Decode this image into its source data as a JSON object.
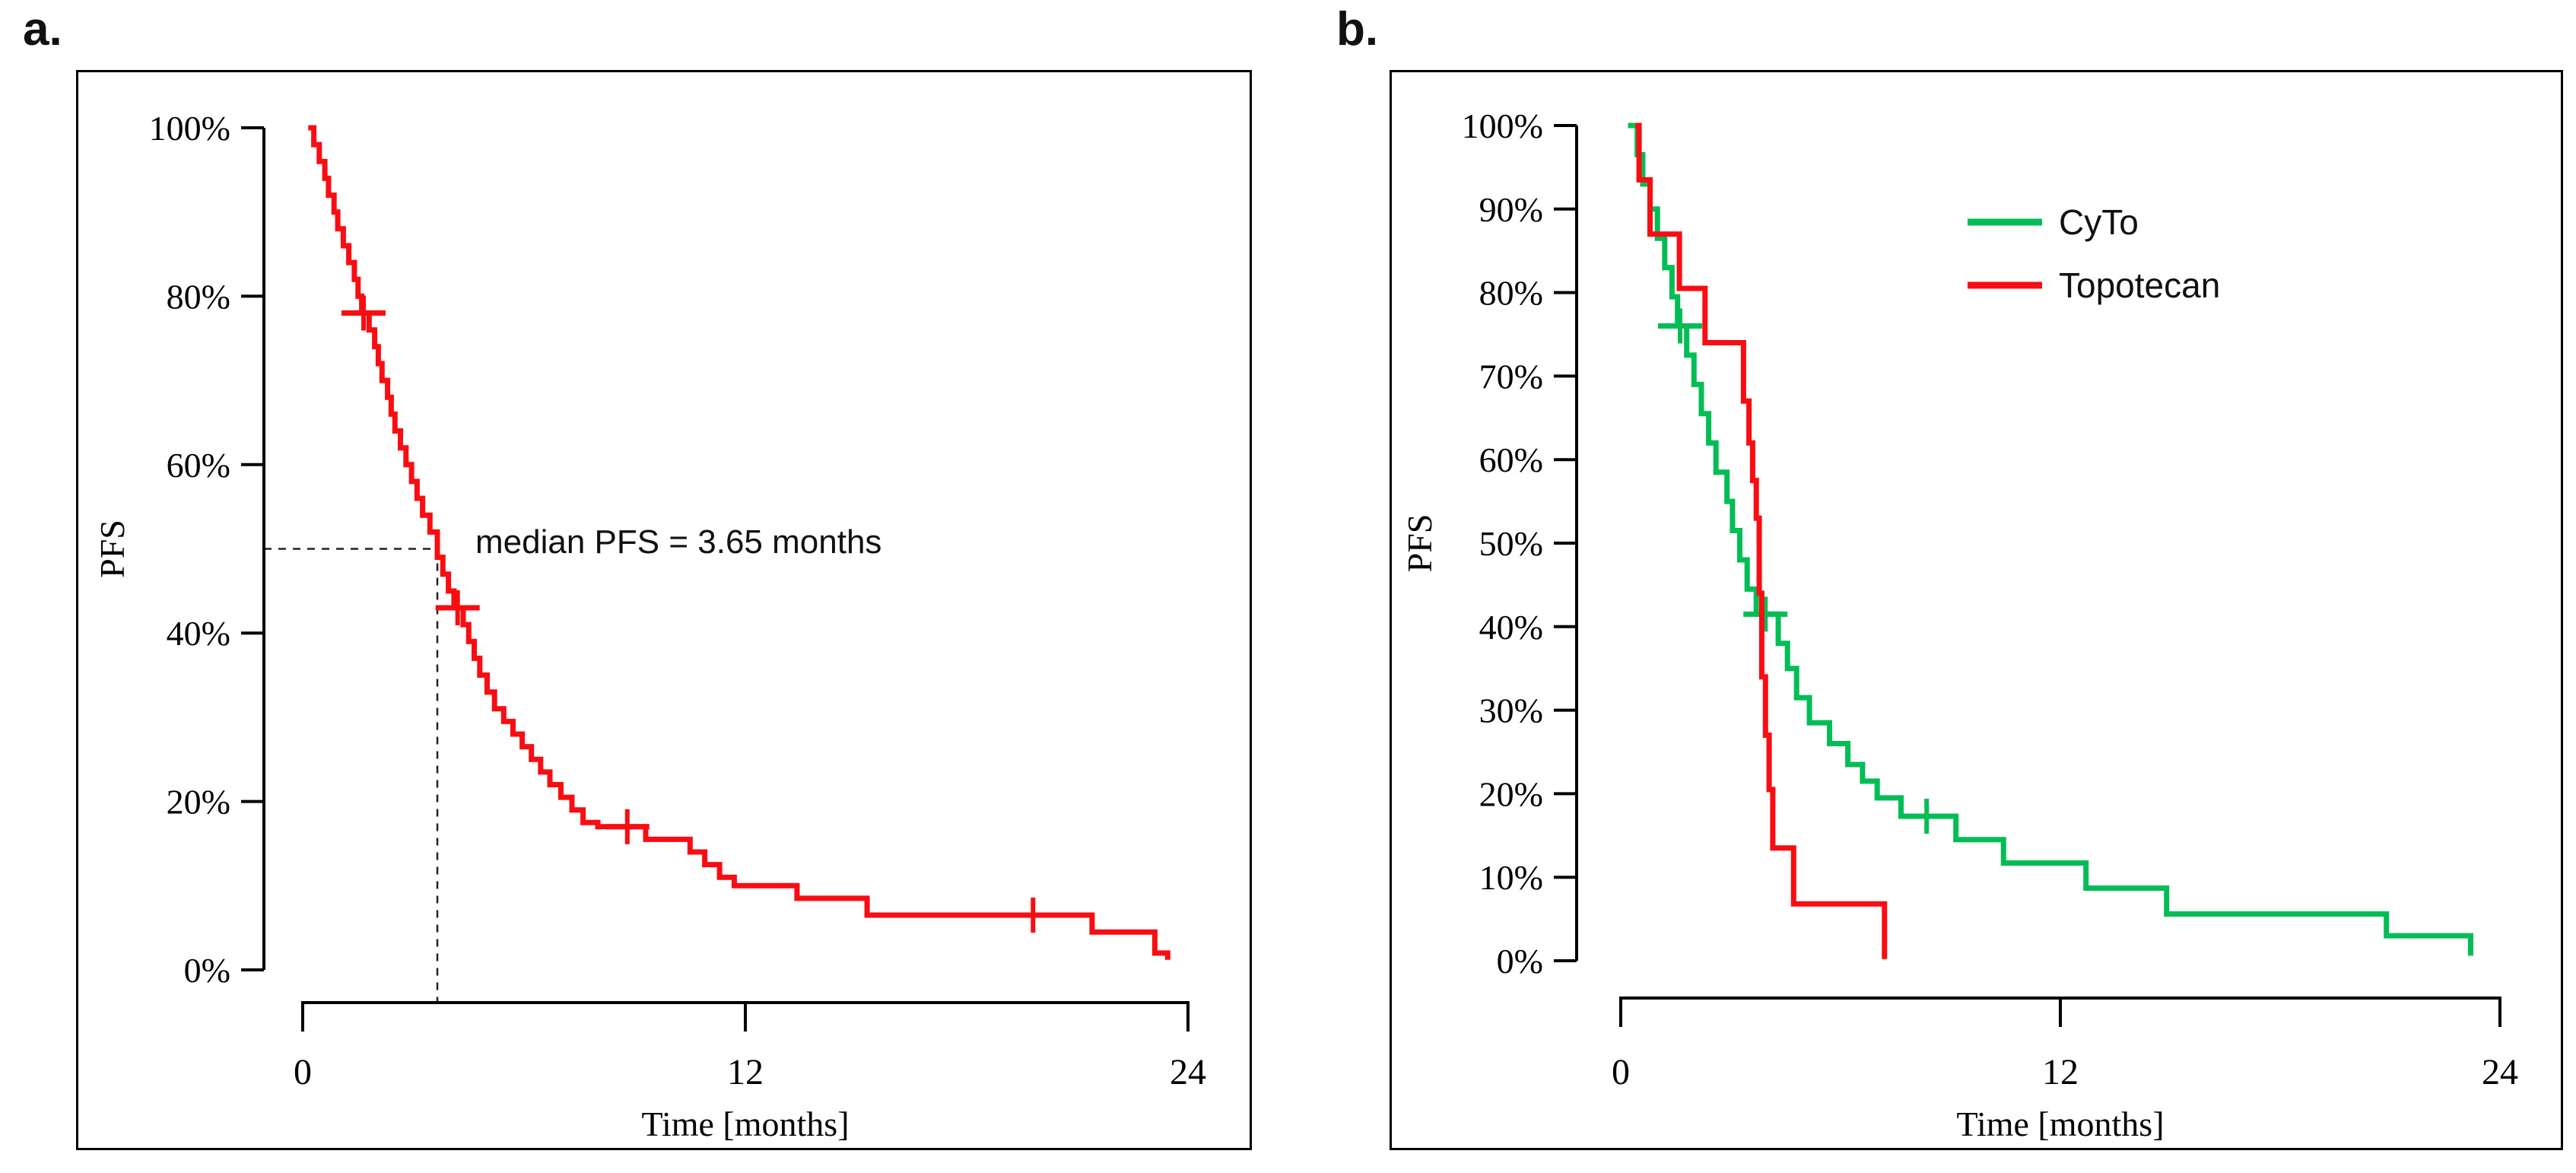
{
  "figure": {
    "background": "#ffffff",
    "axis_color": "#000000",
    "dash_color": "#222222"
  },
  "chart_data": [
    {
      "id": "a",
      "label": "a.",
      "type": "line",
      "subtype": "kaplan-meier-step",
      "title": "",
      "xlabel": "Time [months]",
      "ylabel": "PFS",
      "xlim": [
        0,
        24
      ],
      "ylim": [
        0,
        100
      ],
      "x_ticks": {
        "values": [
          0,
          12,
          24
        ],
        "labels": [
          "0",
          "12",
          "24"
        ]
      },
      "y_ticks": {
        "values": [
          100,
          80,
          60,
          40,
          20,
          0
        ],
        "labels": [
          "100%",
          "80%",
          "60%",
          "40%",
          "20%",
          "0%"
        ]
      },
      "grid": false,
      "annotation": {
        "text": "median PFS = 3.65 months",
        "median_months": 3.65,
        "median_percent": 50
      },
      "series": [
        {
          "name": "PFS",
          "color": "#f90d12",
          "start": 0.15,
          "end": 23.45,
          "steps": [
            [
              0.3,
              98
            ],
            [
              0.45,
              96
            ],
            [
              0.6,
              94
            ],
            [
              0.7,
              92
            ],
            [
              0.85,
              90
            ],
            [
              0.95,
              88
            ],
            [
              1.1,
              86
            ],
            [
              1.25,
              84
            ],
            [
              1.4,
              82
            ],
            [
              1.5,
              80
            ],
            [
              1.6,
              78
            ],
            [
              1.8,
              76
            ],
            [
              1.95,
              74
            ],
            [
              2.05,
              72
            ],
            [
              2.15,
              70
            ],
            [
              2.3,
              68
            ],
            [
              2.4,
              66
            ],
            [
              2.5,
              64
            ],
            [
              2.65,
              62
            ],
            [
              2.8,
              60
            ],
            [
              2.95,
              58
            ],
            [
              3.1,
              56
            ],
            [
              3.25,
              54
            ],
            [
              3.45,
              52
            ],
            [
              3.65,
              49
            ],
            [
              3.8,
              47
            ],
            [
              3.95,
              45
            ],
            [
              4.1,
              43
            ],
            [
              4.35,
              41
            ],
            [
              4.5,
              39
            ],
            [
              4.65,
              37
            ],
            [
              4.8,
              35
            ],
            [
              5.0,
              33
            ],
            [
              5.2,
              31
            ],
            [
              5.45,
              29.5
            ],
            [
              5.7,
              28
            ],
            [
              5.95,
              26.5
            ],
            [
              6.2,
              25
            ],
            [
              6.45,
              23.5
            ],
            [
              6.7,
              22
            ],
            [
              7.0,
              20.5
            ],
            [
              7.3,
              19
            ],
            [
              7.6,
              17.5
            ],
            [
              8.0,
              17
            ],
            [
              9.3,
              15.5
            ],
            [
              10.5,
              14
            ],
            [
              10.9,
              12.5
            ],
            [
              11.3,
              11
            ],
            [
              11.7,
              10
            ],
            [
              13.4,
              8.5
            ],
            [
              15.3,
              6.5
            ],
            [
              21.4,
              4.5
            ],
            [
              23.1,
              2
            ],
            [
              23.45,
              1.2
            ]
          ],
          "censor_marks": [
            [
              1.65,
              78
            ],
            [
              4.2,
              43
            ],
            [
              8.8,
              17
            ],
            [
              19.8,
              6.5
            ]
          ]
        }
      ]
    },
    {
      "id": "b",
      "label": "b.",
      "type": "line",
      "subtype": "kaplan-meier-step",
      "title": "",
      "xlabel": "Time [months]",
      "ylabel": "PFS",
      "xlim": [
        0,
        24
      ],
      "ylim": [
        0,
        100
      ],
      "x_ticks": {
        "values": [
          0,
          12,
          24
        ],
        "labels": [
          "0",
          "12",
          "24"
        ]
      },
      "y_ticks": {
        "values": [
          100,
          90,
          80,
          70,
          60,
          50,
          40,
          30,
          20,
          10,
          0
        ],
        "labels": [
          "100%",
          "90%",
          "80%",
          "70%",
          "60%",
          "50%",
          "40%",
          "30%",
          "20%",
          "10%",
          "0%"
        ]
      },
      "grid": false,
      "legend": {
        "position": "upper-right",
        "items": [
          {
            "label": "CyTo",
            "color": "#00bd56"
          },
          {
            "label": "Topotecan",
            "color": "#f90d12"
          }
        ]
      },
      "series": [
        {
          "name": "CyTo",
          "color": "#00bd56",
          "start": 0.2,
          "end": 23.2,
          "steps": [
            [
              0.45,
              96.5
            ],
            [
              0.6,
              93
            ],
            [
              0.8,
              90
            ],
            [
              1.0,
              86.5
            ],
            [
              1.2,
              83
            ],
            [
              1.4,
              79.5
            ],
            [
              1.55,
              76
            ],
            [
              1.8,
              72.5
            ],
            [
              2.0,
              69
            ],
            [
              2.2,
              65.5
            ],
            [
              2.4,
              62
            ],
            [
              2.6,
              58.5
            ],
            [
              2.9,
              55
            ],
            [
              3.05,
              51.5
            ],
            [
              3.25,
              48
            ],
            [
              3.45,
              44.5
            ],
            [
              3.7,
              41.5
            ],
            [
              4.3,
              38
            ],
            [
              4.55,
              35
            ],
            [
              4.8,
              31.5
            ],
            [
              5.15,
              28.5
            ],
            [
              5.7,
              26
            ],
            [
              6.2,
              23.5
            ],
            [
              6.6,
              21.5
            ],
            [
              7.0,
              19.5
            ],
            [
              7.65,
              17.3
            ],
            [
              9.15,
              14.5
            ],
            [
              10.45,
              11.7
            ],
            [
              12.7,
              8.7
            ],
            [
              14.9,
              5.6
            ],
            [
              20.9,
              3
            ],
            [
              23.2,
              0.6
            ]
          ],
          "censor_marks": [
            [
              1.62,
              76
            ],
            [
              3.95,
              41.5
            ],
            [
              8.35,
              17.3
            ]
          ]
        },
        {
          "name": "Topotecan",
          "color": "#f90d12",
          "start": 0.4,
          "end": 7.2,
          "steps": [
            [
              0.5,
              93.5
            ],
            [
              0.8,
              87
            ],
            [
              1.6,
              80.5
            ],
            [
              2.3,
              74
            ],
            [
              3.35,
              67
            ],
            [
              3.5,
              62
            ],
            [
              3.6,
              57.5
            ],
            [
              3.7,
              53
            ],
            [
              3.78,
              44
            ],
            [
              3.85,
              34
            ],
            [
              3.95,
              27
            ],
            [
              4.05,
              20.5
            ],
            [
              4.15,
              13.5
            ],
            [
              4.72,
              6.8
            ],
            [
              7.2,
              0.2
            ]
          ],
          "censor_marks": []
        }
      ]
    }
  ]
}
